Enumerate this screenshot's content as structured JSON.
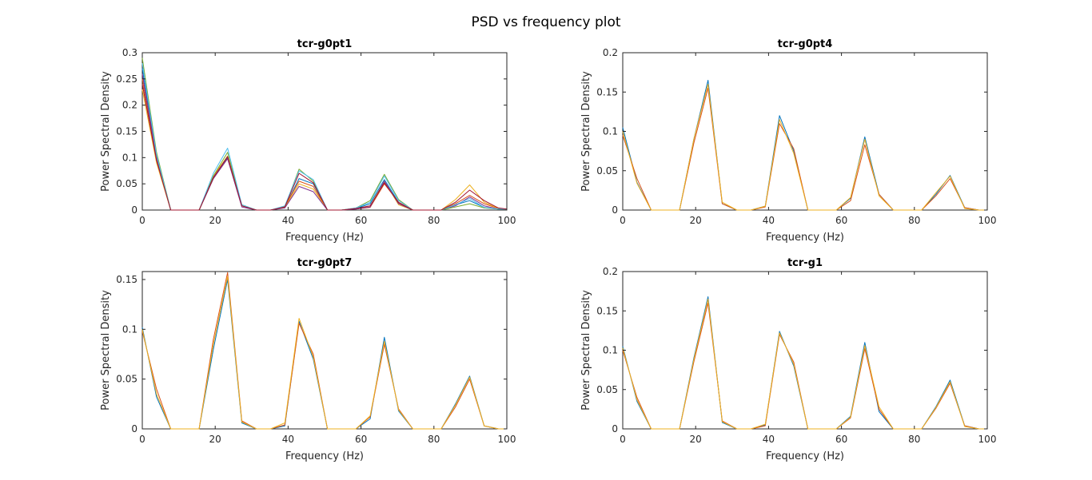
{
  "figure": {
    "title": "PSD vs frequency plot"
  },
  "palette": [
    "#0072BD",
    "#D95319",
    "#EDB120",
    "#7E2F8E",
    "#77AC30",
    "#4DBEEE",
    "#A2142F"
  ],
  "chart_data": [
    {
      "type": "line",
      "title": "tcr-g0pt1",
      "xlabel": "Frequency (Hz)",
      "ylabel": "Power Spectral Density",
      "xlim": [
        0,
        100
      ],
      "ylim": [
        0,
        0.3
      ],
      "xticks": [
        0,
        20,
        40,
        60,
        80,
        100
      ],
      "xtick_labels": [
        "0",
        "20",
        "40",
        "60",
        "80",
        "100"
      ],
      "yticks": [
        0,
        0.05,
        0.1,
        0.15,
        0.2,
        0.25,
        0.3
      ],
      "ytick_labels": [
        "0",
        "0.05",
        "0.1",
        "0.15",
        "0.2",
        "0.25",
        "0.3"
      ],
      "grid": false,
      "x": [
        0,
        3.9,
        7.8,
        11.7,
        15.6,
        19.5,
        23.4,
        27.3,
        31.3,
        35.2,
        39.1,
        43.0,
        46.9,
        50.8,
        54.7,
        58.6,
        62.5,
        66.4,
        70.3,
        74.2,
        78.1,
        82.0,
        85.9,
        89.8,
        93.8,
        97.7,
        100
      ],
      "series": [
        {
          "values": [
            0.27,
            0.1,
            0,
            0,
            0,
            0.06,
            0.1,
            0.008,
            0,
            0,
            0.005,
            0.06,
            0.05,
            0,
            0,
            0.003,
            0.012,
            0.058,
            0.015,
            0,
            0,
            0,
            0.01,
            0.018,
            0.005,
            0.002,
            0.002
          ]
        },
        {
          "values": [
            0.25,
            0.095,
            0,
            0,
            0,
            0.06,
            0.098,
            0.008,
            0,
            0,
            0.007,
            0.055,
            0.045,
            0,
            0,
            0.002,
            0.005,
            0.05,
            0.015,
            0,
            0,
            0,
            0.012,
            0.028,
            0.012,
            0.003,
            0.002
          ]
        },
        {
          "values": [
            0.23,
            0.09,
            0,
            0,
            0,
            0.065,
            0.103,
            0.008,
            0,
            0,
            0.005,
            0.05,
            0.04,
            0,
            0,
            0.003,
            0.008,
            0.055,
            0.01,
            0,
            0,
            0,
            0.02,
            0.048,
            0.015,
            0.003,
            0.002
          ]
        },
        {
          "values": [
            0.26,
            0.1,
            0,
            0,
            0,
            0.06,
            0.098,
            0.006,
            0,
            0,
            0.004,
            0.045,
            0.035,
            0,
            0,
            0.002,
            0.006,
            0.055,
            0.012,
            0,
            0,
            0,
            0.008,
            0.025,
            0.008,
            0.002,
            0.002
          ]
        },
        {
          "values": [
            0.29,
            0.11,
            0,
            0,
            0,
            0.065,
            0.11,
            0.01,
            0,
            0,
            0.006,
            0.078,
            0.055,
            0,
            0,
            0.004,
            0.018,
            0.068,
            0.02,
            0,
            0,
            0,
            0.006,
            0.012,
            0.004,
            0.002,
            0.002
          ]
        },
        {
          "values": [
            0.28,
            0.105,
            0,
            0,
            0,
            0.07,
            0.118,
            0.01,
            0,
            0,
            0.008,
            0.075,
            0.058,
            0,
            0,
            0.004,
            0.015,
            0.065,
            0.018,
            0,
            0,
            0,
            0.01,
            0.022,
            0.005,
            0.002,
            0.002
          ]
        },
        {
          "values": [
            0.24,
            0.095,
            0,
            0,
            0,
            0.062,
            0.102,
            0.008,
            0,
            0,
            0.006,
            0.07,
            0.052,
            0,
            0,
            0.003,
            0.008,
            0.052,
            0.014,
            0,
            0,
            0,
            0.015,
            0.038,
            0.018,
            0.004,
            0.002
          ]
        }
      ]
    },
    {
      "type": "line",
      "title": "tcr-g0pt4",
      "xlabel": "Frequency (Hz)",
      "ylabel": "Power Spectral Density",
      "xlim": [
        0,
        100
      ],
      "ylim": [
        0,
        0.2
      ],
      "xticks": [
        0,
        20,
        40,
        60,
        80,
        100
      ],
      "xtick_labels": [
        "0",
        "20",
        "40",
        "60",
        "80",
        "100"
      ],
      "yticks": [
        0,
        0.05,
        0.1,
        0.15,
        0.2
      ],
      "ytick_labels": [
        "0",
        "0.05",
        "0.1",
        "0.15",
        "0.2"
      ],
      "grid": false,
      "x": [
        0,
        3.9,
        7.8,
        11.7,
        15.6,
        19.5,
        23.4,
        27.3,
        31.3,
        35.2,
        39.1,
        43.0,
        46.9,
        50.8,
        54.7,
        58.6,
        62.5,
        66.4,
        70.3,
        74.2,
        78.1,
        82.0,
        85.9,
        89.8,
        93.8,
        97.7,
        100
      ],
      "series": [
        {
          "values": [
            0.105,
            0.035,
            0,
            0,
            0,
            0.09,
            0.165,
            0.008,
            0,
            0,
            0.005,
            0.12,
            0.075,
            0,
            0,
            0,
            0.015,
            0.093,
            0.02,
            0,
            0,
            0,
            0.02,
            0.044,
            0.003,
            0,
            0
          ]
        },
        {
          "values": [
            0.095,
            0.04,
            0,
            0,
            0,
            0.085,
            0.155,
            0.008,
            0,
            0,
            0.004,
            0.11,
            0.078,
            0,
            0,
            0,
            0.012,
            0.083,
            0.02,
            0,
            0,
            0,
            0.018,
            0.04,
            0.003,
            0,
            0
          ]
        },
        {
          "values": [
            0.1,
            0.034,
            0,
            0,
            0,
            0.09,
            0.16,
            0.01,
            0,
            0,
            0.005,
            0.115,
            0.072,
            0,
            0,
            0,
            0.016,
            0.09,
            0.018,
            0,
            0,
            0,
            0.022,
            0.043,
            0.002,
            0,
            0
          ]
        }
      ]
    },
    {
      "type": "line",
      "title": "tcr-g0pt7",
      "xlabel": "Frequency (Hz)",
      "ylabel": "Power Spectral Density",
      "xlim": [
        0,
        100
      ],
      "ylim": [
        0,
        0.158
      ],
      "xticks": [
        0,
        20,
        40,
        60,
        80,
        100
      ],
      "xtick_labels": [
        "0",
        "20",
        "40",
        "60",
        "80",
        "100"
      ],
      "yticks": [
        0,
        0.05,
        0.1,
        0.15
      ],
      "ytick_labels": [
        "0",
        "0.05",
        "0.1",
        "0.15"
      ],
      "grid": false,
      "x": [
        0,
        3.9,
        7.8,
        11.7,
        15.6,
        19.5,
        23.4,
        27.3,
        31.3,
        35.2,
        39.1,
        43.0,
        46.9,
        50.8,
        54.7,
        58.6,
        62.5,
        66.4,
        70.3,
        74.2,
        78.1,
        82.0,
        85.9,
        89.8,
        93.8,
        97.7,
        100
      ],
      "series": [
        {
          "values": [
            0.102,
            0.032,
            0,
            0,
            0,
            0.08,
            0.15,
            0.006,
            0,
            0,
            0.003,
            0.108,
            0.07,
            0,
            0,
            0,
            0.01,
            0.092,
            0.018,
            0,
            0,
            0,
            0.025,
            0.053,
            0.003,
            0,
            0
          ]
        },
        {
          "values": [
            0.098,
            0.04,
            0,
            0,
            0,
            0.09,
            0.157,
            0.008,
            0,
            0,
            0.004,
            0.106,
            0.075,
            0,
            0,
            0,
            0.012,
            0.085,
            0.02,
            0,
            0,
            0,
            0.022,
            0.05,
            0.003,
            0,
            0
          ]
        },
        {
          "values": [
            0.1,
            0.035,
            0,
            0,
            0,
            0.085,
            0.153,
            0.007,
            0,
            0,
            0.006,
            0.111,
            0.072,
            0,
            0,
            0,
            0.013,
            0.088,
            0.019,
            0,
            0,
            0,
            0.024,
            0.052,
            0.003,
            0,
            0
          ]
        }
      ]
    },
    {
      "type": "line",
      "title": "tcr-g1",
      "xlabel": "Frequency (Hz)",
      "ylabel": "Power Spectral Density",
      "xlim": [
        0,
        100
      ],
      "ylim": [
        0,
        0.2
      ],
      "xticks": [
        0,
        20,
        40,
        60,
        80,
        100
      ],
      "xtick_labels": [
        "0",
        "20",
        "40",
        "60",
        "80",
        "100"
      ],
      "yticks": [
        0,
        0.05,
        0.1,
        0.15,
        0.2
      ],
      "ytick_labels": [
        "0",
        "0.05",
        "0.1",
        "0.15",
        "0.2"
      ],
      "grid": false,
      "x": [
        0,
        3.9,
        7.8,
        11.7,
        15.6,
        19.5,
        23.4,
        27.3,
        31.3,
        35.2,
        39.1,
        43.0,
        46.9,
        50.8,
        54.7,
        58.6,
        62.5,
        66.4,
        70.3,
        74.2,
        78.1,
        82.0,
        85.9,
        89.8,
        93.8,
        97.7,
        100
      ],
      "series": [
        {
          "values": [
            0.105,
            0.035,
            0,
            0,
            0,
            0.09,
            0.168,
            0.008,
            0,
            0,
            0.005,
            0.124,
            0.08,
            0,
            0,
            0,
            0.016,
            0.11,
            0.022,
            0,
            0,
            0,
            0.028,
            0.062,
            0.004,
            0,
            0
          ]
        },
        {
          "values": [
            0.1,
            0.04,
            0,
            0,
            0,
            0.085,
            0.16,
            0.01,
            0,
            0,
            0.004,
            0.12,
            0.085,
            0,
            0,
            0,
            0.014,
            0.102,
            0.025,
            0,
            0,
            0,
            0.026,
            0.058,
            0.004,
            0,
            0
          ]
        },
        {
          "values": [
            0.103,
            0.037,
            0,
            0,
            0,
            0.088,
            0.165,
            0.009,
            0,
            0,
            0.006,
            0.122,
            0.082,
            0,
            0,
            0,
            0.015,
            0.106,
            0.028,
            0,
            0,
            0,
            0.027,
            0.06,
            0.003,
            0,
            0
          ]
        }
      ]
    }
  ]
}
